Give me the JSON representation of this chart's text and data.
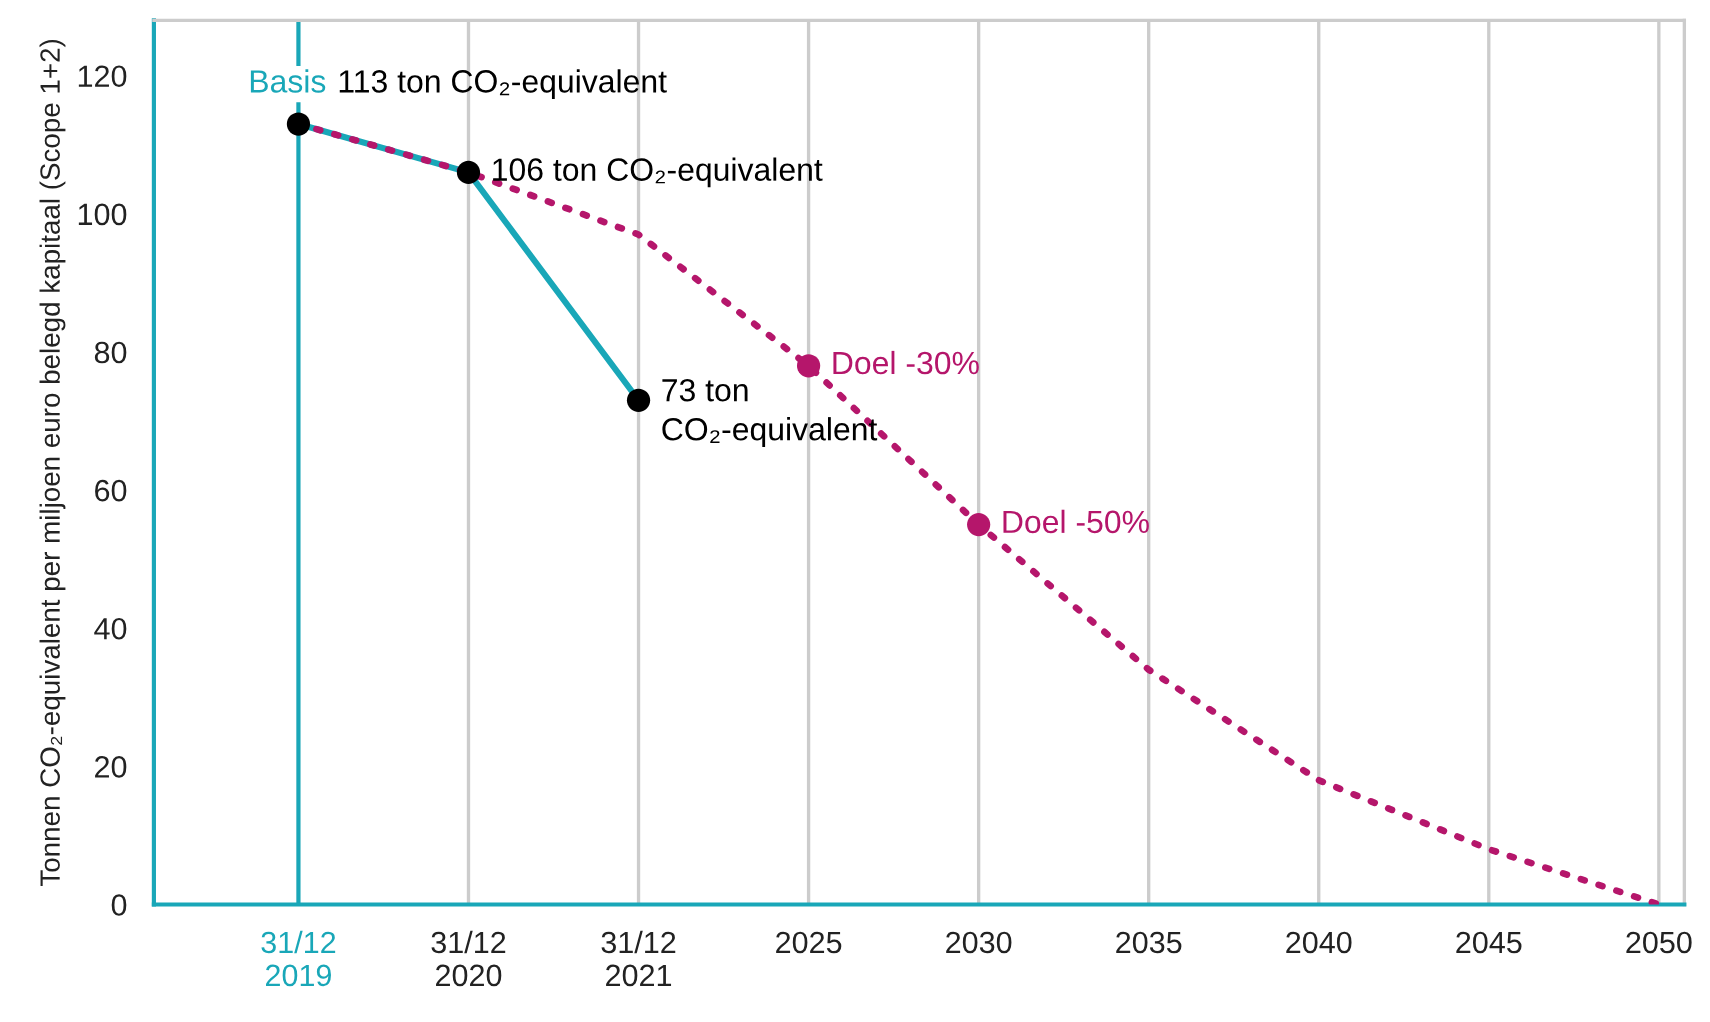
{
  "chart_data": {
    "type": "line",
    "ylabel": "Tonnen CO₂-equivalent per miljoen euro belegd kapitaal (Scope 1+2)",
    "categories": [
      "31/12\n2019",
      "31/12\n2020",
      "31/12\n2021",
      "2025",
      "2030",
      "2035",
      "2040",
      "2045",
      "2050"
    ],
    "series": [
      {
        "name": "Basis",
        "color": "#19a7b8",
        "values": [
          113,
          106,
          73,
          null,
          null,
          null,
          null,
          null,
          null
        ],
        "colors": [
          "#000000",
          "#000000",
          "#000000",
          null,
          null,
          null,
          null,
          null,
          null
        ],
        "marker": "circle",
        "line_style": "solid",
        "value_labels": [
          "113 ton CO₂-equivalent",
          "106 ton CO₂-equivalent",
          "73 ton\nCO₂-equivalent",
          null,
          null,
          null,
          null,
          null,
          null
        ]
      },
      {
        "color": "#b5166b",
        "values": [
          113,
          106,
          97,
          78,
          55,
          34,
          18,
          8,
          0
        ],
        "marker": "none",
        "line_style": "dotted"
      },
      {
        "type": "scatter",
        "color": "#b5166b",
        "values": [
          null,
          null,
          null,
          78,
          55,
          null,
          null,
          null,
          null
        ],
        "marker": "circle"
      }
    ],
    "annotations": [
      {
        "text": "Doel -30%",
        "x": "2025",
        "y": 78
      },
      {
        "text": "Doel -50%",
        "x": "2030",
        "y": 55
      }
    ],
    "ylim": [
      0,
      128
    ],
    "yticks": [
      0,
      20,
      40,
      60,
      80,
      100,
      120
    ],
    "ref_lines": [
      {
        "axis": "x",
        "value": "31/12\n2019",
        "color": "#19a7b8"
      }
    ],
    "grid": "x",
    "legend": false
  }
}
